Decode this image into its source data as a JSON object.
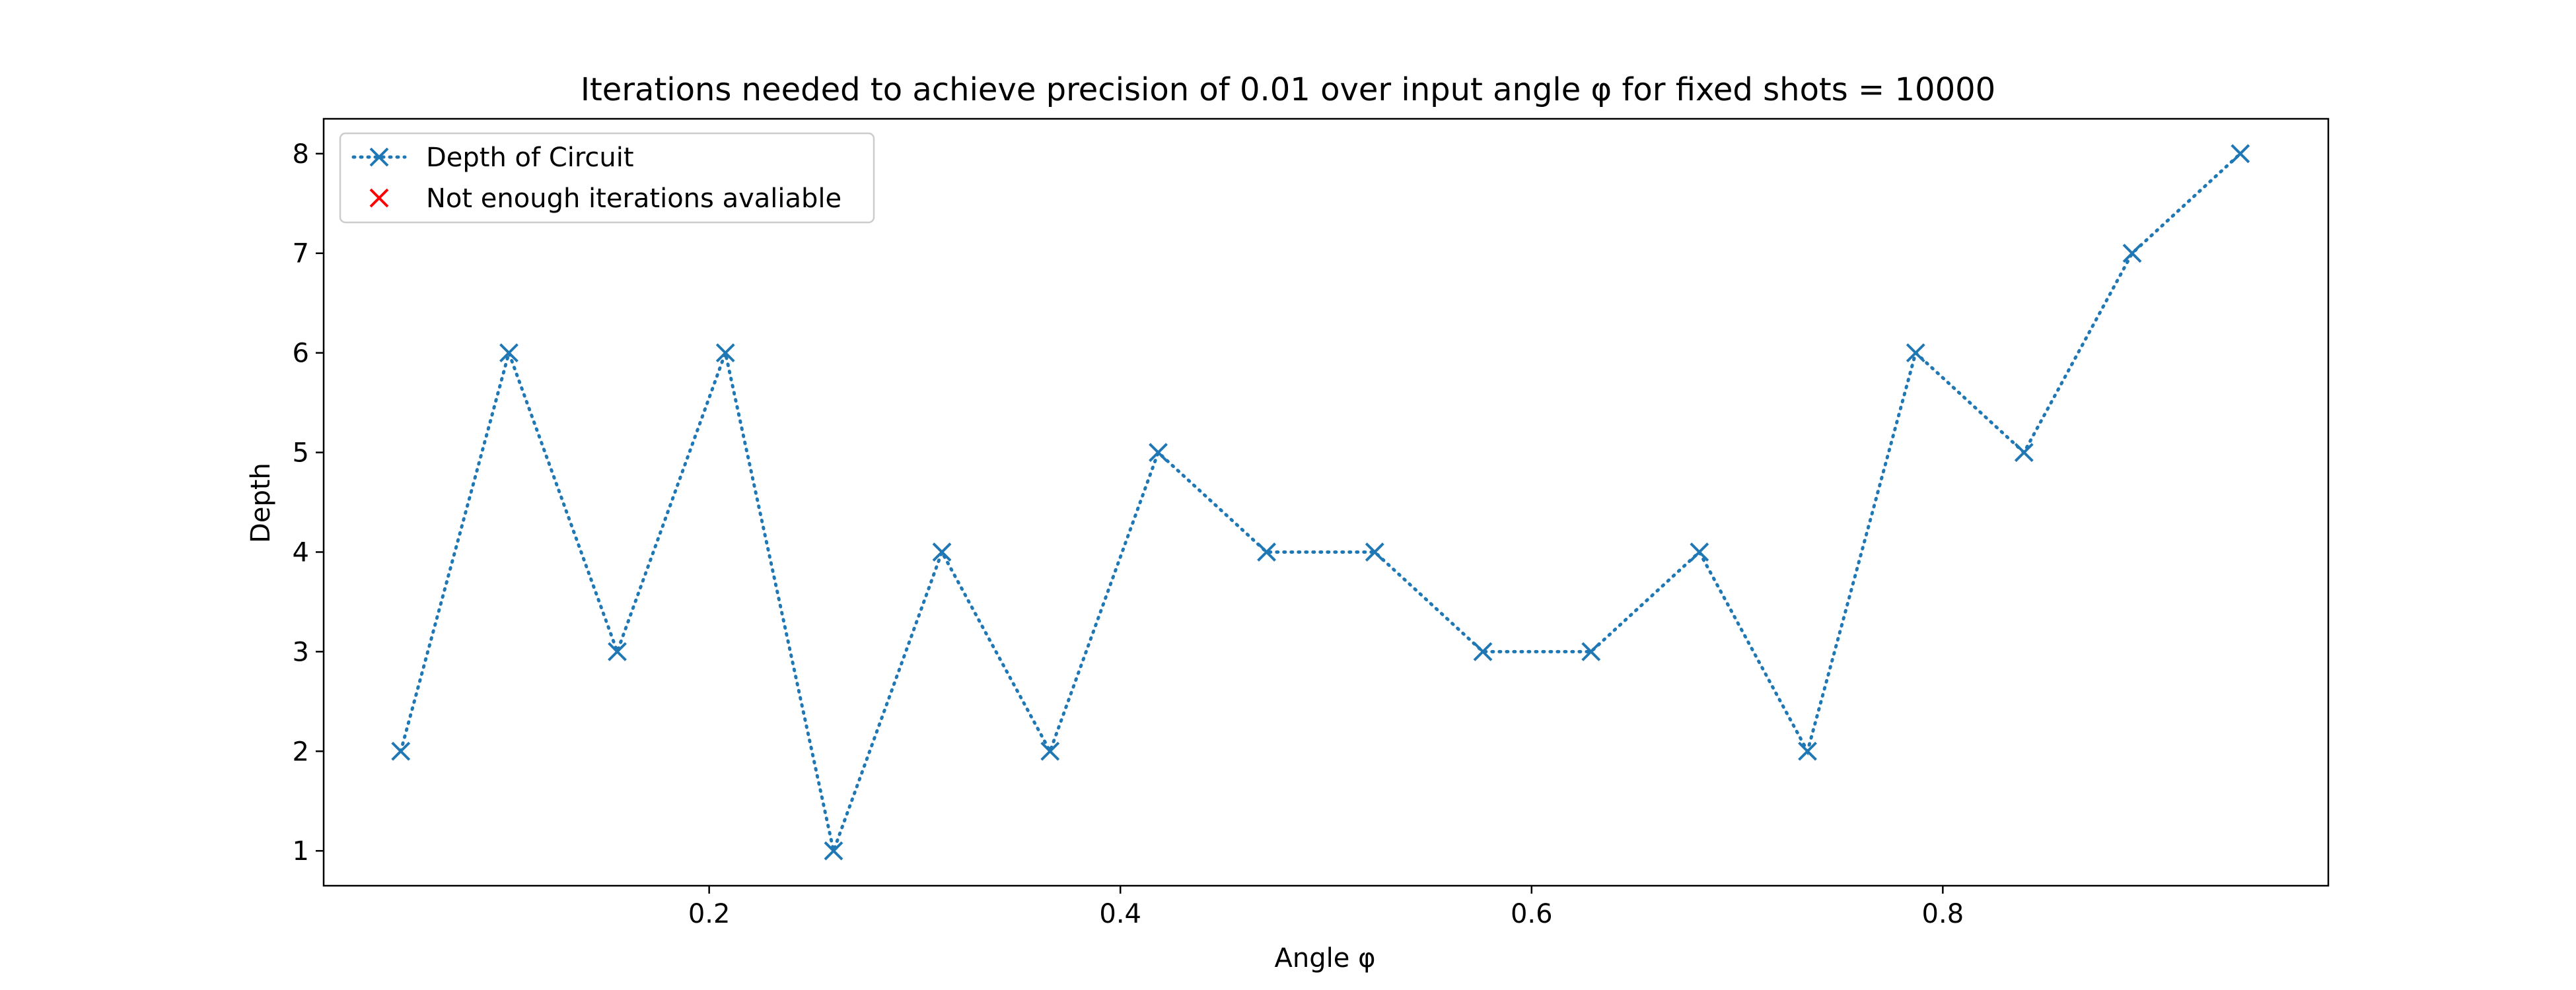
{
  "chart_data": {
    "type": "line",
    "title": "Iterations needed to achieve precision of 0.01 over input angle φ for fixed shots = 10000",
    "xlabel": "Angle φ",
    "ylabel": "Depth",
    "xlim": [
      0.0125,
      0.9875
    ],
    "ylim": [
      0.65,
      8.35
    ],
    "xticks": [
      0.2,
      0.4,
      0.6,
      0.8
    ],
    "yticks": [
      1,
      2,
      3,
      4,
      5,
      6,
      7,
      8
    ],
    "grid": false,
    "legend_position": "upper-left",
    "series": [
      {
        "name": "Depth of Circuit",
        "color": "#1f77b4",
        "line_style": "dotted",
        "marker": "x",
        "x": [
          0.05,
          0.1026,
          0.1553,
          0.2079,
          0.2605,
          0.3132,
          0.3658,
          0.4184,
          0.4711,
          0.5237,
          0.5763,
          0.6289,
          0.6816,
          0.7342,
          0.7868,
          0.8395,
          0.8921,
          0.9447
        ],
        "y": [
          2,
          6,
          3,
          6,
          1,
          4,
          2,
          5,
          4,
          4,
          3,
          3,
          4,
          2,
          6,
          5,
          7,
          8
        ]
      },
      {
        "name": "Not enough iterations avaliable",
        "color": "#ff0000",
        "line_style": "none",
        "marker": "x",
        "x": [],
        "y": []
      }
    ]
  }
}
